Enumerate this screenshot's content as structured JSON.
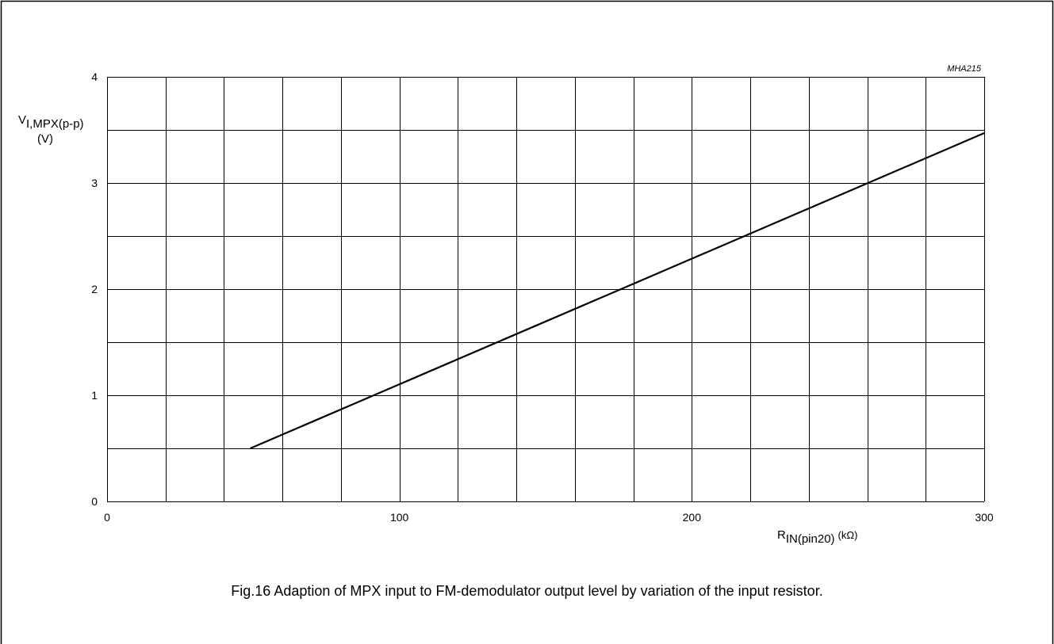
{
  "figure": {
    "caption": "Fig.16  Adaption of MPX input to FM-demodulator output level by variation of the input resistor.",
    "code": "MHA215"
  },
  "chart_data": {
    "type": "line",
    "code": "MHA215",
    "ylabel": {
      "main": "V",
      "sub": "I,MPX(p-p)",
      "unit": "(V)"
    },
    "xlabel": {
      "main": "R",
      "sub": "IN(pin20)",
      "unit": "(kΩ)"
    },
    "xlim": [
      0,
      300
    ],
    "ylim": [
      0,
      4
    ],
    "x_ticks": [
      0,
      100,
      200,
      300
    ],
    "y_ticks": [
      0,
      1,
      2,
      3,
      4
    ],
    "x_tick_labels": [
      "0",
      "100",
      "200",
      "300"
    ],
    "y_tick_labels": [
      "0",
      "1",
      "2",
      "3",
      "4"
    ],
    "x_grid_step": 20,
    "y_grid_step": 0.5,
    "grid": true,
    "series": [
      {
        "x": [
          49,
          300
        ],
        "y": [
          0.5,
          3.47
        ]
      }
    ]
  }
}
